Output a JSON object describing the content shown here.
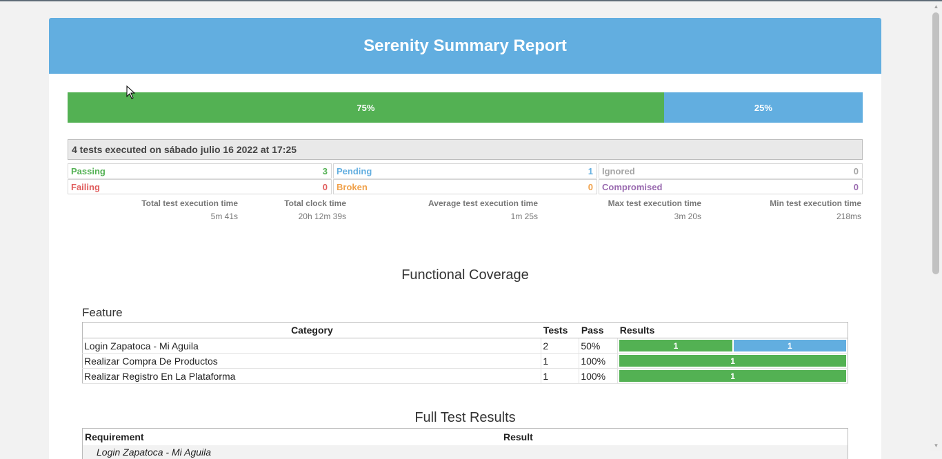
{
  "report": {
    "title": "Serenity Summary Report"
  },
  "progress": {
    "passing_fraction": 0.75,
    "pending_fraction": 0.25,
    "passing_label": "75%",
    "pending_label": "25%"
  },
  "summary": {
    "headline": "4 tests executed on sábado julio 16 2022 at 17:25",
    "stats": [
      {
        "label": "Passing",
        "value": "3",
        "color": "#53b153"
      },
      {
        "label": "Pending",
        "value": "1",
        "color": "#62aee0"
      },
      {
        "label": "Ignored",
        "value": "0",
        "color": "#a5a5a5"
      },
      {
        "label": "Failing",
        "value": "0",
        "color": "#e05d5d"
      },
      {
        "label": "Broken",
        "value": "0",
        "color": "#f0a14a"
      },
      {
        "label": "Compromised",
        "value": "0",
        "color": "#9a6bb0"
      }
    ],
    "timings": [
      {
        "label": "Total test execution time",
        "value": "5m 41s"
      },
      {
        "label": "Total clock time",
        "value": "20h 12m 39s"
      },
      {
        "label": "Average test execution time",
        "value": "1m 25s"
      },
      {
        "label": "Max test execution time",
        "value": "3m 20s"
      },
      {
        "label": "Min test execution time",
        "value": "218ms"
      }
    ]
  },
  "coverage": {
    "title": "Functional Coverage",
    "group_label": "Feature",
    "headers": {
      "category": "Category",
      "tests": "Tests",
      "pass": "Pass",
      "results": "Results"
    },
    "rows": [
      {
        "category": "Login Zapatoca - Mi Aguila",
        "tests": "2",
        "pass": "50%",
        "results": [
          {
            "count": "1",
            "fraction": 0.5,
            "status": "passing"
          },
          {
            "count": "1",
            "fraction": 0.5,
            "status": "pending"
          }
        ]
      },
      {
        "category": "Realizar Compra De Productos",
        "tests": "1",
        "pass": "100%",
        "results": [
          {
            "count": "1",
            "fraction": 1.0,
            "status": "passing"
          }
        ]
      },
      {
        "category": "Realizar Registro En La Plataforma",
        "tests": "1",
        "pass": "100%",
        "results": [
          {
            "count": "1",
            "fraction": 1.0,
            "status": "passing"
          }
        ]
      }
    ]
  },
  "full_results": {
    "title": "Full Test Results",
    "headers": {
      "requirement": "Requirement",
      "result": "Result"
    },
    "rows": [
      {
        "requirement": "Login Zapatoca - Mi Aguila",
        "result": ""
      }
    ]
  },
  "colors": {
    "header": "#62aee0",
    "passing": "#53b153",
    "pending": "#62aee0"
  }
}
